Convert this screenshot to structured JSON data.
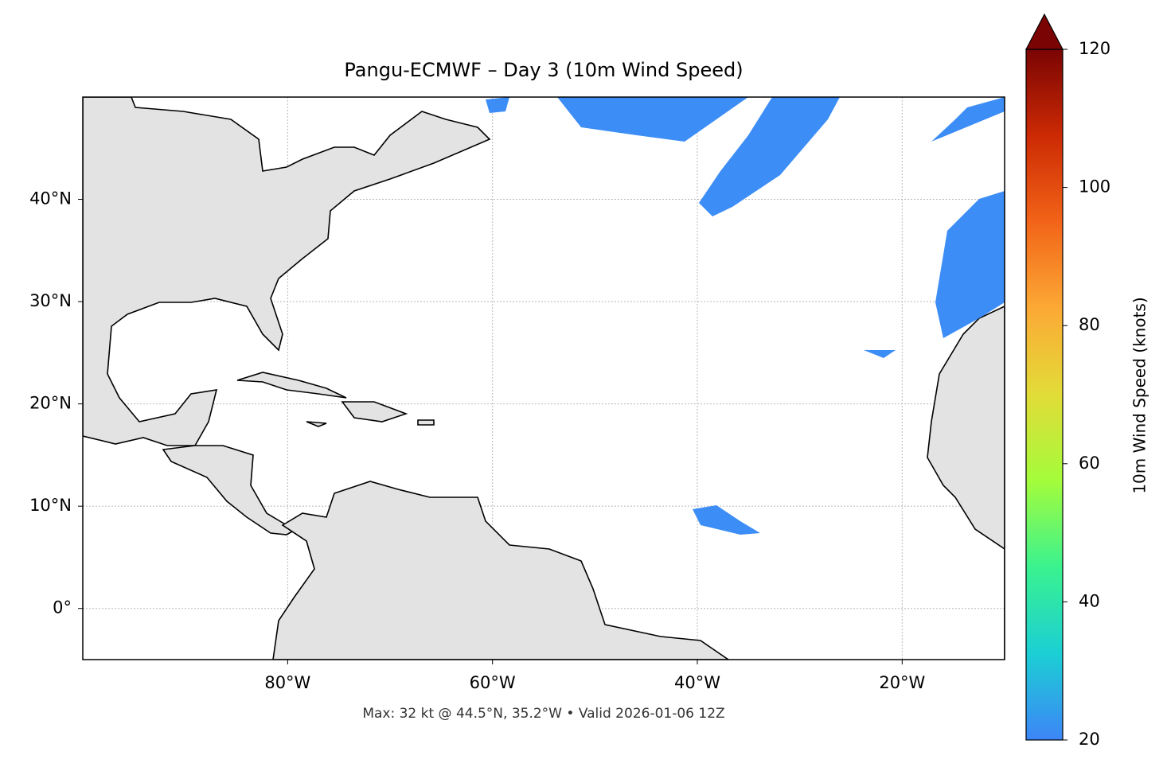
{
  "chart_data": {
    "type": "map",
    "title": "Pangu-ECMWF – Day 3 (10m Wind Speed)",
    "footnote": "Max: 32 kt @ 44.5°N, 35.2°W • Valid 2026-01-06 12Z",
    "xlim": [
      -100,
      -10
    ],
    "ylim": [
      -5,
      50
    ],
    "xticks": [
      {
        "value": -80,
        "label": "80°W"
      },
      {
        "value": -60,
        "label": "60°W"
      },
      {
        "value": -40,
        "label": "40°W"
      },
      {
        "value": -20,
        "label": "20°W"
      }
    ],
    "yticks": [
      {
        "value": 0,
        "label": "0°"
      },
      {
        "value": 10,
        "label": "10°N"
      },
      {
        "value": 20,
        "label": "20°N"
      },
      {
        "value": 30,
        "label": "30°N"
      },
      {
        "value": 40,
        "label": "40°N"
      }
    ],
    "grid": true,
    "colorbar": {
      "label": "10m Wind Speed (knots)",
      "lim": [
        20,
        120
      ],
      "ticks": [
        20,
        40,
        60,
        80,
        100,
        120
      ],
      "colors": [
        "#3d85f7",
        "#1bcfd4",
        "#3af28f",
        "#a4fc3b",
        "#e2dc38",
        "#fca935",
        "#f26418",
        "#cc2a04",
        "#7a0403"
      ],
      "extend": "max"
    }
  }
}
